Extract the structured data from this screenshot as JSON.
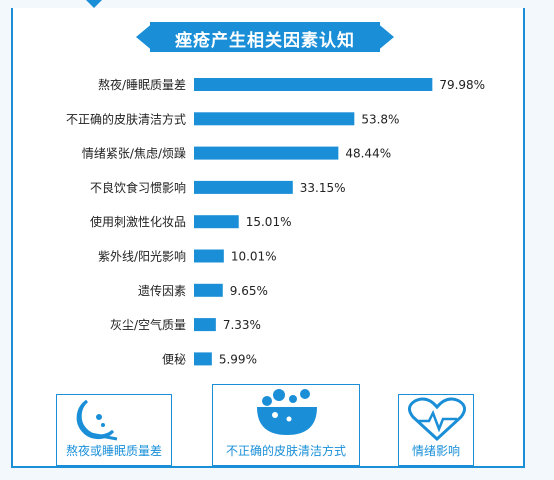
{
  "title": "痤疮产生相关因素认知",
  "chart_data": {
    "type": "bar",
    "orientation": "horizontal",
    "categories": [
      "熬夜/睡眠质量差",
      "不正确的皮肤清洁方式",
      "情绪紧张/焦虑/烦躁",
      "不良饮食习惯影响",
      "使用刺激性化妆品",
      "紫外线/阳光影响",
      "遗传因素",
      "灰尘/空气质量",
      "便秘"
    ],
    "values": [
      79.98,
      53.8,
      48.44,
      33.15,
      15.01,
      10.01,
      9.65,
      7.33,
      5.99
    ],
    "value_labels": [
      "79.98%",
      "53.8%",
      "48.44%",
      "33.15%",
      "15.01%",
      "10.01%",
      "9.65%",
      "7.33%",
      "5.99%"
    ],
    "xlim": [
      0,
      100
    ],
    "bar_color": "#1a8fd8",
    "grid": false
  },
  "icons": [
    {
      "icon": "moon-sleep-icon",
      "label": "熬夜或睡眠质量差"
    },
    {
      "icon": "bubble-bowl-icon",
      "label": "不正确的皮肤清洁方式"
    },
    {
      "icon": "heart-pulse-icon",
      "label": "情绪影响"
    }
  ],
  "colors": {
    "accent": "#1a8fd8",
    "text": "#222222"
  }
}
